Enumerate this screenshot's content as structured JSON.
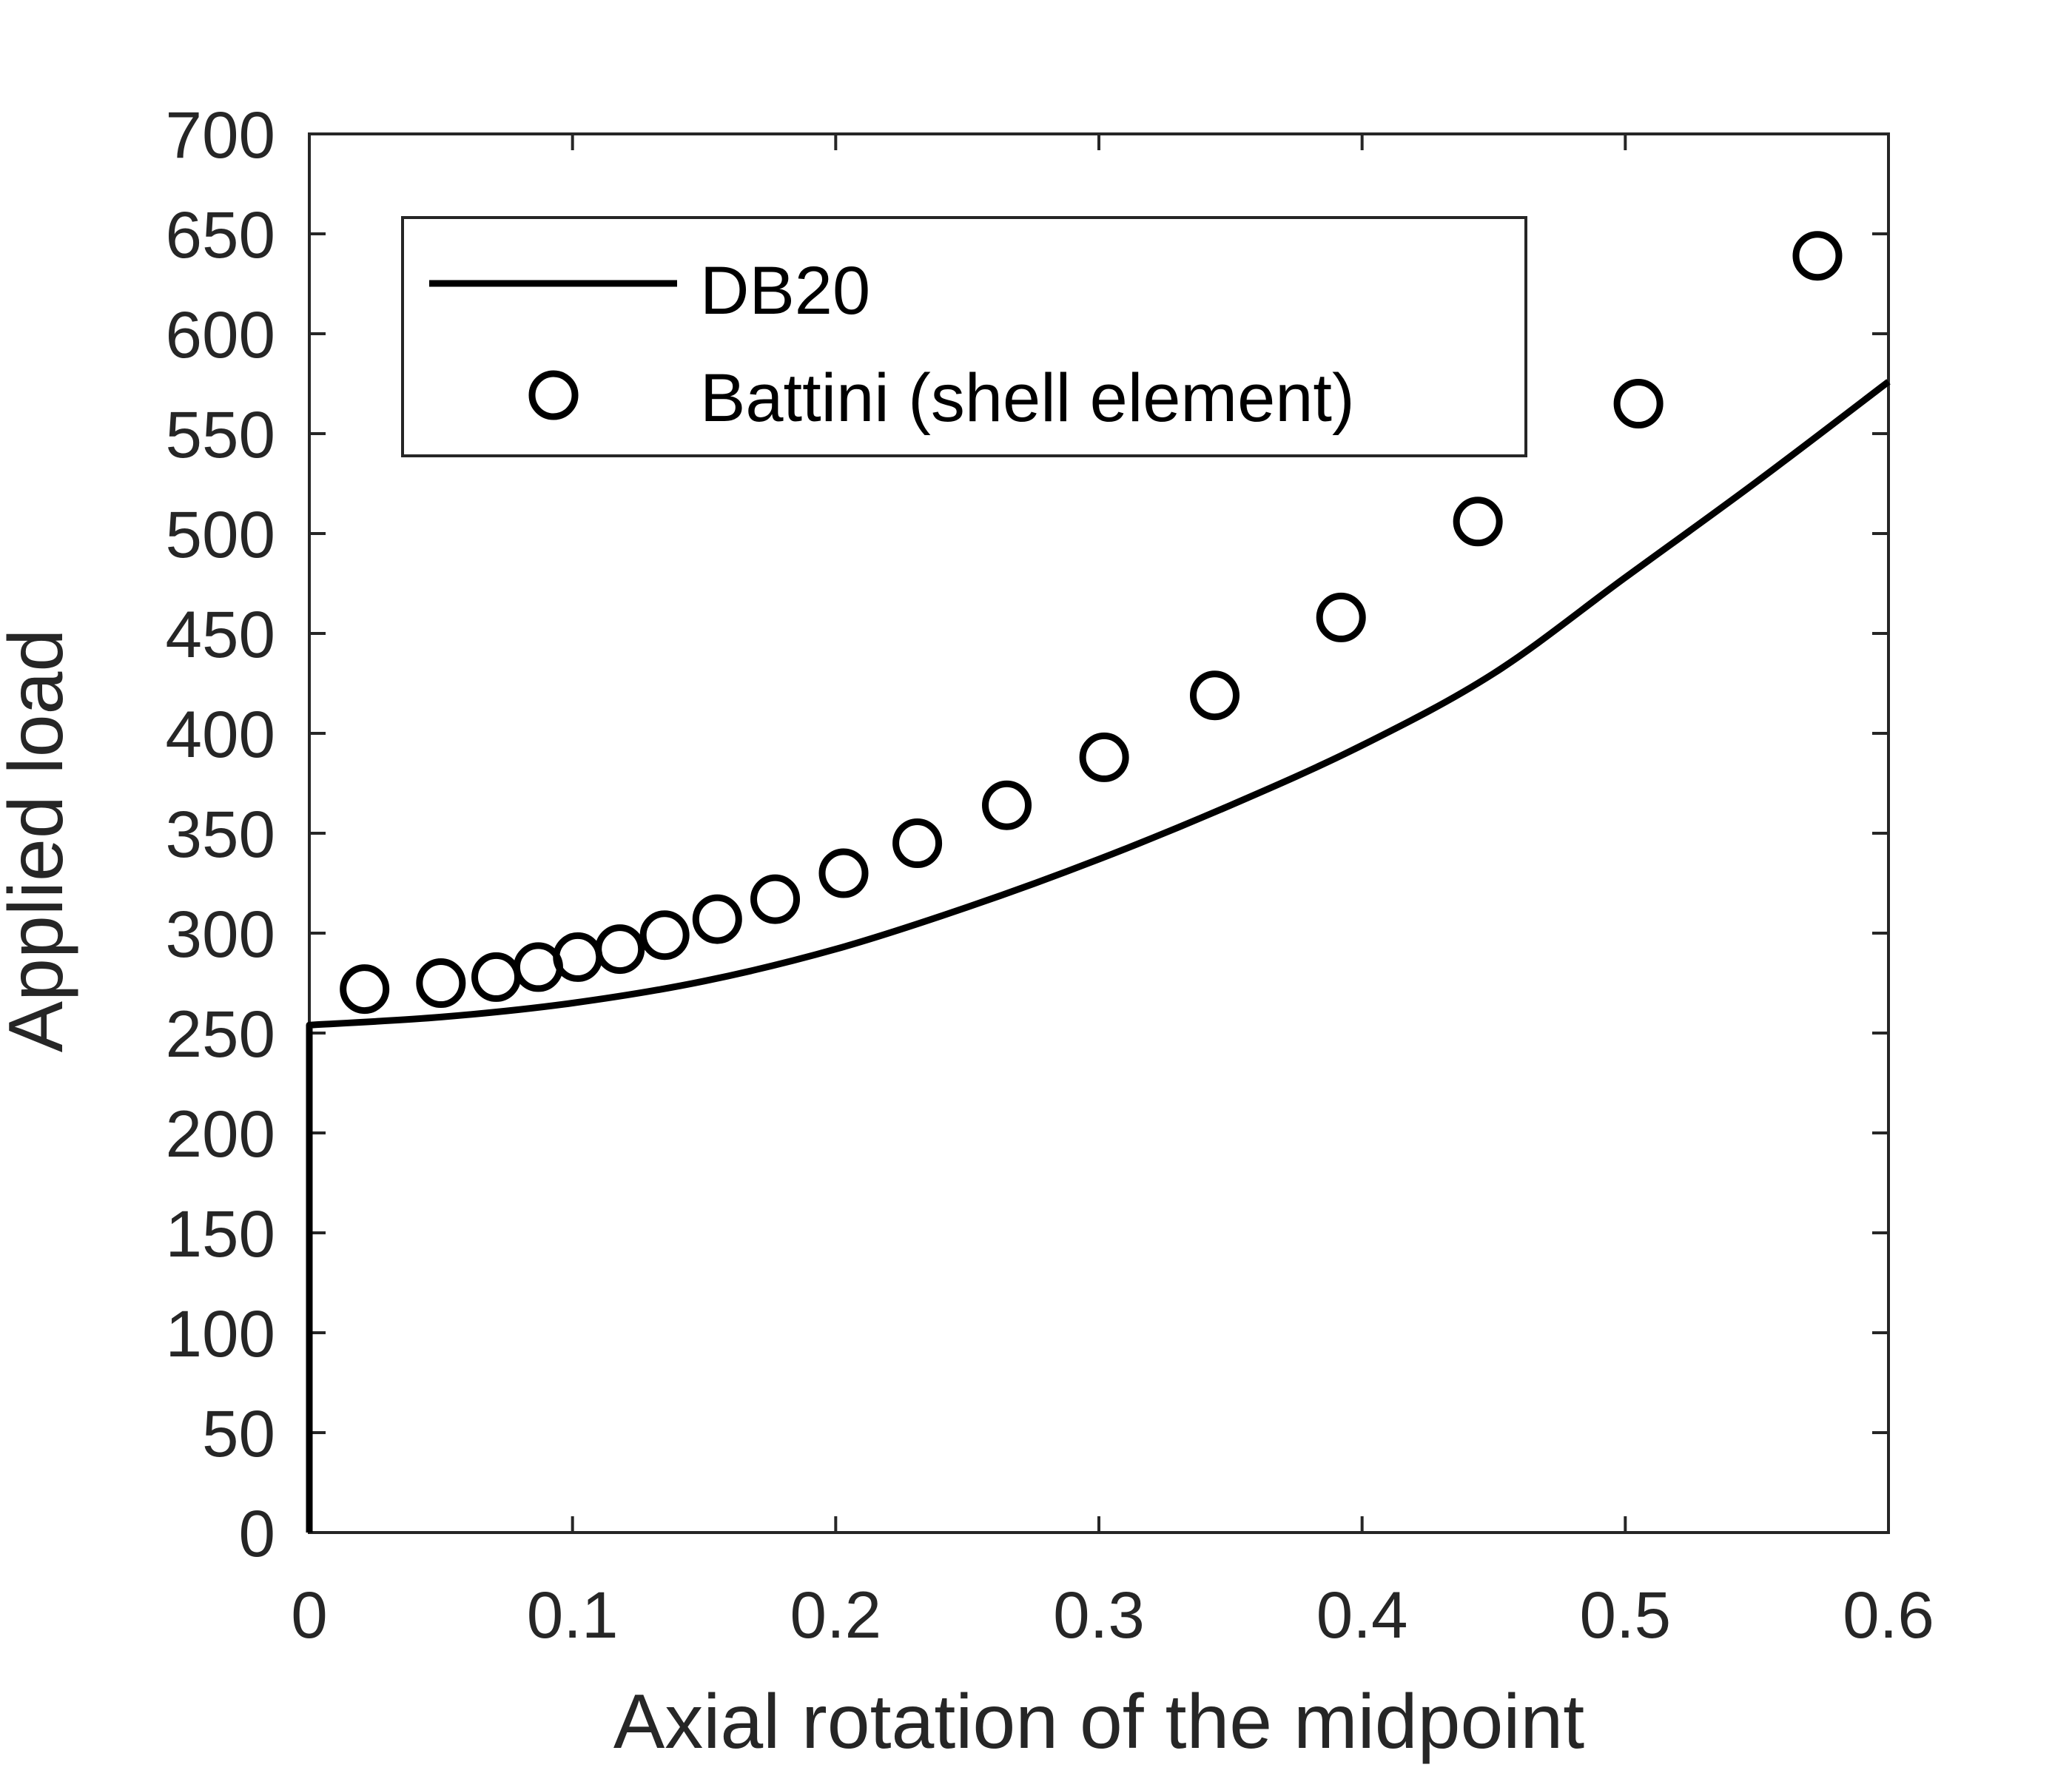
{
  "chart_data": {
    "type": "line",
    "xlabel": "Axial rotation of the midpoint",
    "ylabel": "Applied load",
    "xlim": [
      0,
      0.6
    ],
    "ylim": [
      0,
      700
    ],
    "xticks": [
      0,
      0.1,
      0.2,
      0.3,
      0.4,
      0.5,
      0.6
    ],
    "xtick_labels": [
      "0",
      "0.1",
      "0.2",
      "0.3",
      "0.4",
      "0.5",
      "0.6"
    ],
    "yticks": [
      0,
      50,
      100,
      150,
      200,
      250,
      300,
      350,
      400,
      450,
      500,
      550,
      600,
      650,
      700
    ],
    "ytick_labels": [
      "0",
      "50",
      "100",
      "150",
      "200",
      "250",
      "300",
      "350",
      "400",
      "450",
      "500",
      "550",
      "600",
      "650",
      "700"
    ],
    "grid": false,
    "legend_position": "top-left",
    "series": [
      {
        "name": "DB20",
        "style": "line",
        "color": "#000000",
        "x": [
          0,
          0,
          0.05,
          0.1,
          0.15,
          0.2,
          0.25,
          0.3,
          0.35,
          0.4,
          0.45,
          0.5,
          0.55,
          0.6
        ],
        "y": [
          0,
          254,
          258,
          265,
          276,
          292,
          313,
          337,
          364,
          394,
          430,
          478,
          526,
          576
        ]
      },
      {
        "name": "Battini (shell element)",
        "style": "marker-circle",
        "color": "#000000",
        "x": [
          0.021,
          0.05,
          0.071,
          0.087,
          0.102,
          0.118,
          0.135,
          0.155,
          0.177,
          0.203,
          0.231,
          0.265,
          0.302,
          0.344,
          0.392,
          0.444,
          0.505,
          0.573
        ],
        "y": [
          272,
          275,
          278,
          283,
          288,
          292,
          299,
          307,
          317,
          330,
          345,
          364,
          388,
          419,
          458,
          506,
          565,
          639
        ]
      }
    ]
  }
}
